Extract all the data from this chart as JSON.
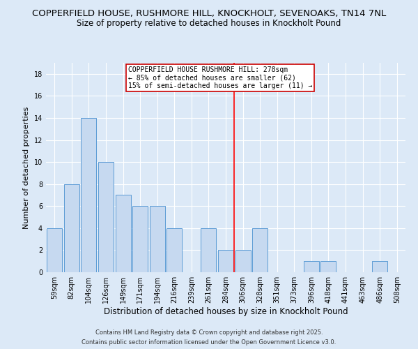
{
  "title": "COPPERFIELD HOUSE, RUSHMORE HILL, KNOCKHOLT, SEVENOAKS, TN14 7NL",
  "subtitle": "Size of property relative to detached houses in Knockholt Pound",
  "xlabel": "Distribution of detached houses by size in Knockholt Pound",
  "ylabel": "Number of detached properties",
  "bin_labels": [
    "59sqm",
    "82sqm",
    "104sqm",
    "126sqm",
    "149sqm",
    "171sqm",
    "194sqm",
    "216sqm",
    "239sqm",
    "261sqm",
    "284sqm",
    "306sqm",
    "328sqm",
    "351sqm",
    "373sqm",
    "396sqm",
    "418sqm",
    "441sqm",
    "463sqm",
    "486sqm",
    "508sqm"
  ],
  "bar_values": [
    4,
    8,
    14,
    10,
    7,
    6,
    6,
    4,
    0,
    4,
    2,
    2,
    4,
    0,
    0,
    1,
    1,
    0,
    0,
    1,
    0
  ],
  "bar_color": "#c6d9f0",
  "bar_edge_color": "#5b9bd5",
  "vline_x": 10.5,
  "vline_color": "red",
  "annotation_title": "COPPERFIELD HOUSE RUSHMORE HILL: 278sqm",
  "annotation_line1": "← 85% of detached houses are smaller (62)",
  "annotation_line2": "15% of semi-detached houses are larger (11) →",
  "annotation_box_color": "#ffffff",
  "annotation_box_edge": "#cc0000",
  "ylim": [
    0,
    19
  ],
  "yticks": [
    0,
    2,
    4,
    6,
    8,
    10,
    12,
    14,
    16,
    18
  ],
  "background_color": "#dce9f7",
  "plot_bg_color": "#dce9f7",
  "footer1": "Contains HM Land Registry data © Crown copyright and database right 2025.",
  "footer2": "Contains public sector information licensed under the Open Government Licence v3.0.",
  "title_fontsize": 9.5,
  "subtitle_fontsize": 8.5,
  "xlabel_fontsize": 8.5,
  "ylabel_fontsize": 8,
  "tick_fontsize": 7,
  "annotation_fontsize": 7,
  "footer_fontsize": 6
}
